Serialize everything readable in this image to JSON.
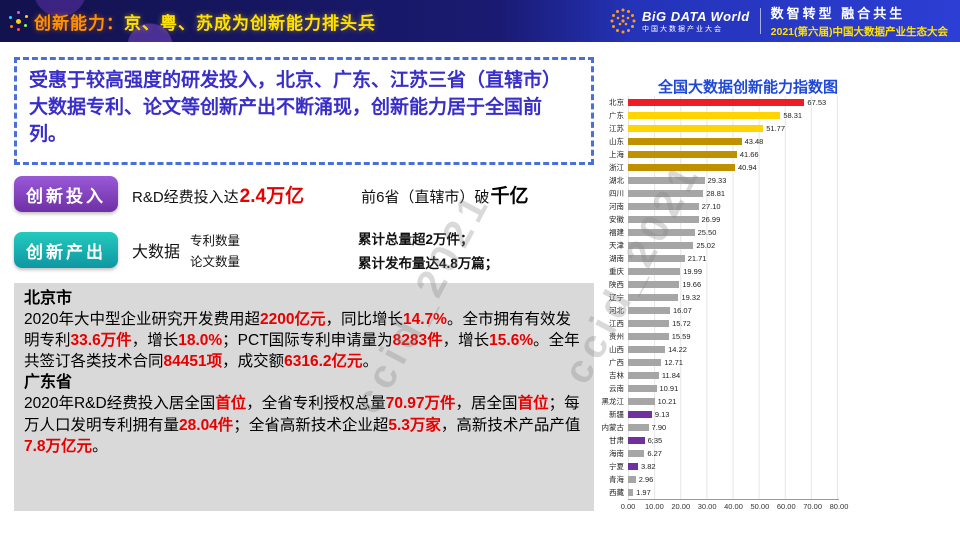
{
  "header": {
    "title_prefix": "创新能力：",
    "title_main": "京、粤、苏成为创新能力排头兵",
    "logo_title": "BiG DATA World",
    "logo_subtitle": "中国大数据产业大会",
    "slogan": "数智转型  融合共生",
    "conference": "2021(第六届)中国大数据产业生态大会"
  },
  "summary": {
    "text": "受惠于较高强度的研发投入，北京、广东、江苏三省（直辖市）大数据专利、论文等创新产出不断涌现，创新能力居于全国前列。"
  },
  "investment": {
    "badge": "创新投入",
    "lead": "R&D经费投入达",
    "value": "2.4万亿",
    "lead2": "前6省（直辖市）破",
    "value2": "千亿"
  },
  "output": {
    "badge": "创新产出",
    "label": "大数据",
    "items": [
      "专利数量",
      "论文数量"
    ],
    "results": [
      "累计总量超2万件；",
      "累计发布量达4.8万篇；"
    ]
  },
  "details": {
    "beijing_title": "北京市",
    "beijing_segments": [
      {
        "t": "2020年大中型企业研究开发费用超",
        "c": "k"
      },
      {
        "t": "2200亿元",
        "c": "r"
      },
      {
        "t": "，同比增长",
        "c": "k"
      },
      {
        "t": "14.7%",
        "c": "r"
      },
      {
        "t": "。全市拥有有效发明专利",
        "c": "k"
      },
      {
        "t": "33.6万件",
        "c": "r"
      },
      {
        "t": "，增长",
        "c": "k"
      },
      {
        "t": "18.0%",
        "c": "r"
      },
      {
        "t": "；PCT国际专利申请量为",
        "c": "k"
      },
      {
        "t": "8283件",
        "c": "r"
      },
      {
        "t": "，增长",
        "c": "k"
      },
      {
        "t": "15.6%",
        "c": "r"
      },
      {
        "t": "。全年共签订各类技术合同",
        "c": "k"
      },
      {
        "t": "84451项",
        "c": "r"
      },
      {
        "t": "，成交额",
        "c": "k"
      },
      {
        "t": "6316.2亿元",
        "c": "r"
      },
      {
        "t": "。",
        "c": "k"
      }
    ],
    "guangdong_title": "广东省",
    "guangdong_segments": [
      {
        "t": "2020年R&D经费投入居全国",
        "c": "k"
      },
      {
        "t": "首位",
        "c": "r"
      },
      {
        "t": "，全省专利授权总量",
        "c": "k"
      },
      {
        "t": "70.97万件",
        "c": "r"
      },
      {
        "t": "，居全国",
        "c": "k"
      },
      {
        "t": "首位",
        "c": "r"
      },
      {
        "t": "；每万人口发明专利拥有量",
        "c": "k"
      },
      {
        "t": "28.04件",
        "c": "r"
      },
      {
        "t": "；全省高新技术",
        "c": "k"
      },
      {
        "t": "企业超",
        "c": "k"
      },
      {
        "t": "5.3万家",
        "c": "r"
      },
      {
        "t": "，高新技术产品产值",
        "c": "k"
      },
      {
        "t": "7.8万亿元",
        "c": "r"
      },
      {
        "t": "。",
        "c": "k"
      }
    ]
  },
  "watermark": "ccid_2021",
  "chart_data": {
    "type": "bar",
    "orientation": "horizontal",
    "title": "全国大数据创新能力指数图",
    "xlabel": "",
    "ylabel": "",
    "xlim": [
      0,
      80
    ],
    "x_ticks": [
      "0.00",
      "10.00",
      "20.00",
      "30.00",
      "40.00",
      "50.00",
      "60.00",
      "70.00",
      "80.00"
    ],
    "colors": {
      "red": "#ee1c25",
      "yellow": "#ffd400",
      "gold": "#bf9000",
      "gray": "#a6a6a6",
      "purple": "#7030a0"
    },
    "bars": [
      {
        "name": "北京",
        "value": 67.53,
        "label": "67.53",
        "color": "red"
      },
      {
        "name": "广东",
        "value": 58.31,
        "label": "58.31",
        "color": "yellow"
      },
      {
        "name": "江苏",
        "value": 51.77,
        "label": "51.77",
        "color": "yellow"
      },
      {
        "name": "山东",
        "value": 43.48,
        "label": "43.48",
        "color": "gold"
      },
      {
        "name": "上海",
        "value": 41.66,
        "label": "41.66",
        "color": "gold"
      },
      {
        "name": "浙江",
        "value": 40.94,
        "label": "40.94",
        "color": "gold"
      },
      {
        "name": "湖北",
        "value": 29.33,
        "label": "29.33",
        "color": "gray"
      },
      {
        "name": "四川",
        "value": 28.81,
        "label": "28.81",
        "color": "gray"
      },
      {
        "name": "河南",
        "value": 27.1,
        "label": "27.10",
        "color": "gray"
      },
      {
        "name": "安徽",
        "value": 26.99,
        "label": "26.99",
        "color": "gray"
      },
      {
        "name": "福建",
        "value": 25.5,
        "label": "25.50",
        "color": "gray"
      },
      {
        "name": "天津",
        "value": 25.02,
        "label": "25.02",
        "color": "gray"
      },
      {
        "name": "湖南",
        "value": 21.71,
        "label": "21.71",
        "color": "gray"
      },
      {
        "name": "重庆",
        "value": 19.99,
        "label": "19.99",
        "color": "gray"
      },
      {
        "name": "陕西",
        "value": 19.66,
        "label": "19.66",
        "color": "gray"
      },
      {
        "name": "辽宁",
        "value": 19.32,
        "label": "19.32",
        "color": "gray"
      },
      {
        "name": "河北",
        "value": 16.07,
        "label": "16.07",
        "color": "gray"
      },
      {
        "name": "江西",
        "value": 15.72,
        "label": "15.72",
        "color": "gray"
      },
      {
        "name": "贵州",
        "value": 15.59,
        "label": "15.59",
        "color": "gray"
      },
      {
        "name": "山西",
        "value": 14.22,
        "label": "14.22",
        "color": "gray"
      },
      {
        "name": "广西",
        "value": 12.71,
        "label": "12.71",
        "color": "gray"
      },
      {
        "name": "吉林",
        "value": 11.84,
        "label": "11.84",
        "color": "gray"
      },
      {
        "name": "云南",
        "value": 10.91,
        "label": "10.91",
        "color": "gray"
      },
      {
        "name": "黑龙江",
        "value": 10.21,
        "label": "10.21",
        "color": "gray"
      },
      {
        "name": "新疆",
        "value": 9.13,
        "label": "9.13",
        "color": "purple"
      },
      {
        "name": "内蒙古",
        "value": 7.9,
        "label": "7.90",
        "color": "gray"
      },
      {
        "name": "甘肃",
        "value": 6.35,
        "label": "6;35",
        "color": "purple"
      },
      {
        "name": "海南",
        "value": 6.27,
        "label": "6.27",
        "color": "gray"
      },
      {
        "name": "宁夏",
        "value": 3.82,
        "label": "3.82",
        "color": "purple"
      },
      {
        "name": "青海",
        "value": 2.96,
        "label": "2.96",
        "color": "gray"
      },
      {
        "name": "西藏",
        "value": 1.97,
        "label": "1.97",
        "color": "gray"
      }
    ]
  }
}
